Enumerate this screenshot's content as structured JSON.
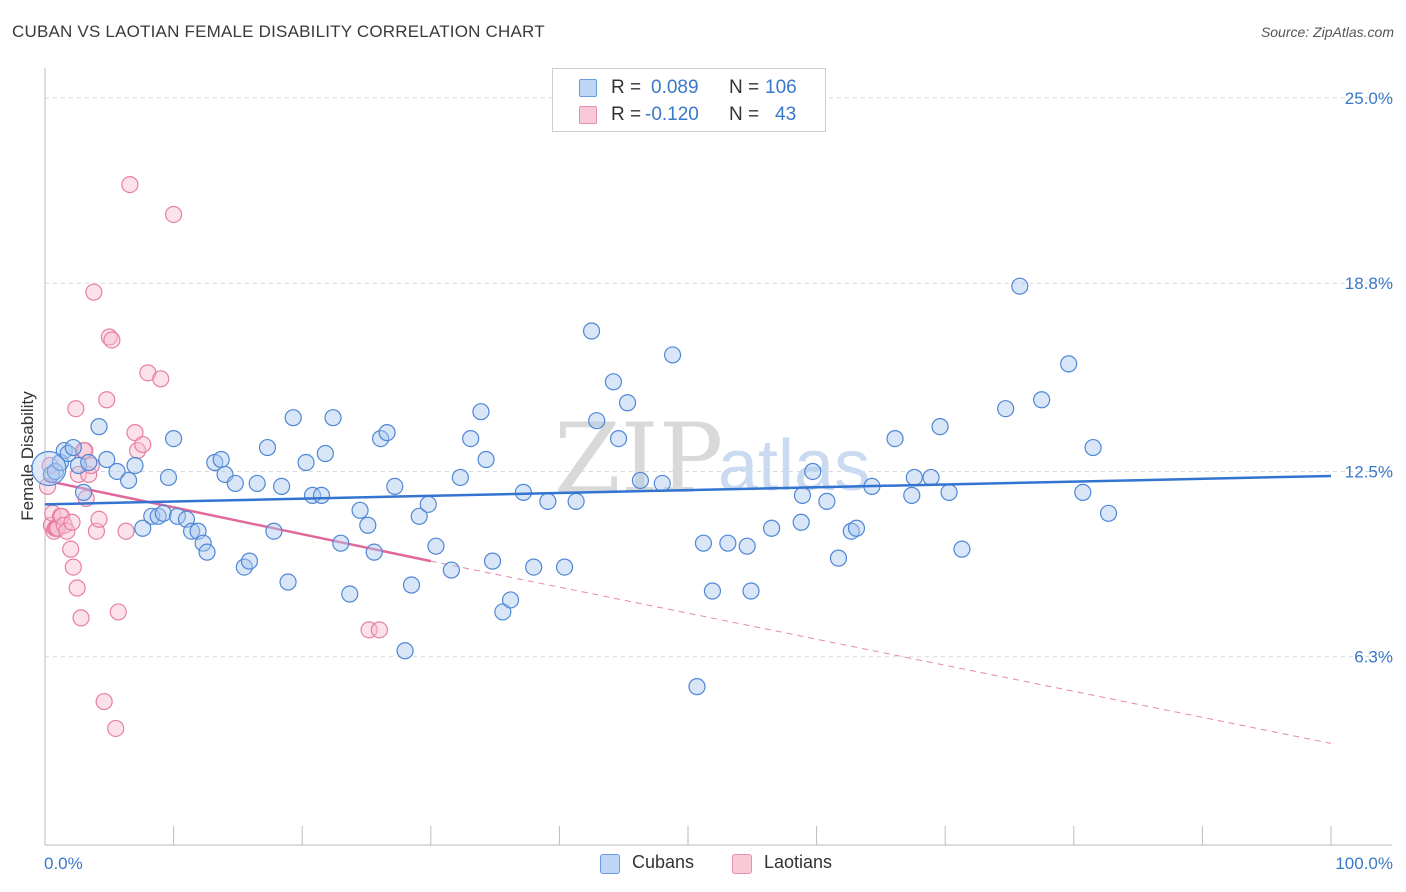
{
  "title": "CUBAN VS LAOTIAN FEMALE DISABILITY CORRELATION CHART",
  "source": "Source: ZipAtlas.com",
  "watermark": {
    "zip": "ZIP",
    "atlas": "atlas"
  },
  "legend_top": {
    "rows": [
      {
        "r_label": "R =",
        "r_value": "0.089",
        "n_label": "N =",
        "n_value": "106"
      },
      {
        "r_label": "R =",
        "r_value": "-0.120",
        "n_label": "N =",
        "n_value": "43"
      }
    ]
  },
  "colors": {
    "cubans_fill": "#a9c8f0",
    "cubans_stroke": "#4f87d6",
    "cubans_line": "#3374d0",
    "laotians_fill": "#f6bfd0",
    "laotians_stroke": "#e87fa2",
    "laotians_line": "#e0689a",
    "tick_text": "#3a78c9",
    "grid": "#d8d8d8"
  },
  "chart_data": {
    "type": "scatter",
    "title": "CUBAN VS LAOTIAN FEMALE DISABILITY CORRELATION CHART",
    "xlabel": "",
    "ylabel": "Female Disability",
    "xlim": [
      0,
      100
    ],
    "ylim": [
      0,
      25.6
    ],
    "y_ticks": [
      6.3,
      12.5,
      18.8,
      25.0
    ],
    "y_tick_labels": [
      "6.3%",
      "12.5%",
      "18.8%",
      "25.0%"
    ],
    "x_tick_labels": [
      "0.0%",
      "100.0%"
    ],
    "legend": [
      "Cubans",
      "Laotians"
    ],
    "series": [
      {
        "name": "Cubans",
        "R": 0.089,
        "N": 106,
        "trend": {
          "x": [
            0,
            100
          ],
          "y": [
            11.4,
            12.35
          ]
        },
        "x": [
          0.5,
          0.8,
          1.2,
          1.5,
          1.8,
          2.2,
          2.6,
          3.0,
          3.4,
          4.2,
          4.8,
          5.6,
          6.5,
          7.0,
          7.6,
          8.3,
          8.8,
          9.2,
          9.6,
          10.0,
          10.3,
          11.0,
          11.4,
          11.9,
          12.3,
          12.6,
          13.2,
          13.7,
          14.0,
          14.8,
          15.5,
          15.9,
          16.5,
          17.3,
          17.8,
          18.4,
          18.9,
          19.3,
          20.3,
          20.8,
          21.5,
          21.8,
          22.4,
          23.0,
          23.7,
          24.5,
          25.1,
          25.6,
          26.1,
          26.6,
          27.2,
          28.0,
          28.5,
          29.1,
          29.8,
          30.4,
          31.6,
          32.3,
          33.1,
          33.9,
          34.3,
          34.8,
          35.6,
          36.2,
          37.2,
          38.0,
          39.1,
          40.4,
          41.3,
          42.5,
          42.9,
          44.2,
          44.6,
          45.3,
          46.3,
          48.0,
          48.8,
          50.7,
          51.2,
          51.9,
          53.1,
          54.6,
          54.9,
          56.5,
          58.8,
          58.9,
          59.7,
          60.8,
          61.7,
          62.7,
          63.1,
          64.3,
          66.1,
          67.4,
          67.6,
          68.9,
          69.6,
          70.3,
          71.3,
          74.7,
          75.8,
          77.5,
          79.6,
          80.7,
          81.5,
          82.7
        ],
        "y": [
          12.4,
          12.5,
          12.8,
          13.2,
          13.1,
          13.3,
          12.7,
          11.8,
          12.8,
          14.0,
          12.9,
          12.5,
          12.2,
          12.7,
          10.6,
          11.0,
          11.0,
          11.1,
          12.3,
          13.6,
          11.0,
          10.9,
          10.5,
          10.5,
          10.1,
          9.8,
          12.8,
          12.9,
          12.4,
          12.1,
          9.3,
          9.5,
          12.1,
          13.3,
          10.5,
          12.0,
          8.8,
          14.3,
          12.8,
          11.7,
          11.7,
          13.1,
          14.3,
          10.1,
          8.4,
          11.2,
          10.7,
          9.8,
          13.6,
          13.8,
          12.0,
          6.5,
          8.7,
          11.0,
          11.4,
          10.0,
          9.2,
          12.3,
          13.6,
          14.5,
          12.9,
          9.5,
          7.8,
          8.2,
          11.8,
          9.3,
          11.5,
          9.3,
          11.5,
          17.2,
          14.2,
          15.5,
          13.6,
          14.8,
          12.2,
          12.1,
          16.4,
          5.3,
          10.1,
          8.5,
          10.1,
          10.0,
          8.5,
          10.6,
          10.8,
          11.7,
          12.5,
          11.5,
          9.6,
          10.5,
          10.6,
          12.0,
          13.6,
          11.7,
          12.3,
          12.3,
          14.0,
          11.8,
          9.9,
          14.6,
          18.7,
          14.9,
          16.1,
          11.8,
          13.3,
          11.1
        ]
      },
      {
        "name": "Laotians",
        "R": -0.12,
        "N": 43,
        "trend": {
          "x": [
            0,
            30
          ],
          "y": [
            12.2,
            9.5
          ],
          "dashed_to": {
            "x": 100,
            "y": 3.4
          }
        },
        "x": [
          0.2,
          0.4,
          0.5,
          0.6,
          0.7,
          0.8,
          0.9,
          1.0,
          1.2,
          1.3,
          1.5,
          1.7,
          2.0,
          2.1,
          2.2,
          2.4,
          2.5,
          2.6,
          2.8,
          3.0,
          3.1,
          3.2,
          3.4,
          3.6,
          3.8,
          4.0,
          4.2,
          4.6,
          4.8,
          5.0,
          5.2,
          5.5,
          5.7,
          6.3,
          6.6,
          7.0,
          7.2,
          7.6,
          8.0,
          9.0,
          10.0,
          25.2,
          26.0
        ],
        "y": [
          12.0,
          12.7,
          10.7,
          11.1,
          10.5,
          10.6,
          10.6,
          10.6,
          11.0,
          11.0,
          10.7,
          10.5,
          9.9,
          10.8,
          9.3,
          14.6,
          8.6,
          12.4,
          7.6,
          13.2,
          13.2,
          11.6,
          12.4,
          12.7,
          18.5,
          10.5,
          10.9,
          4.8,
          14.9,
          17.0,
          16.9,
          3.9,
          7.8,
          10.5,
          22.1,
          13.8,
          13.2,
          13.4,
          15.8,
          15.6,
          21.1,
          7.2,
          7.2
        ]
      }
    ]
  },
  "legend_bottom": {
    "items": [
      {
        "label": "Cubans"
      },
      {
        "label": "Laotians"
      }
    ]
  }
}
